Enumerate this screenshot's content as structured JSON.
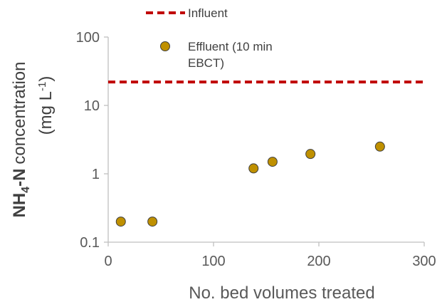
{
  "chart_data": {
    "type": "scatter",
    "xlabel": "No. bed volumes treated",
    "ylabel": {
      "species_main": "NH",
      "species_sub": "4",
      "species_rest": "-N",
      "word": "concentration",
      "unit_open": "(mg L",
      "unit_exp": "-1",
      "unit_close": ")"
    },
    "xlim": [
      0,
      300
    ],
    "ylim": [
      0.1,
      100
    ],
    "y_scale": "log",
    "x_ticks": [
      0,
      100,
      200,
      300
    ],
    "x_tick_labels": [
      "0",
      "100",
      "200",
      "300"
    ],
    "y_ticks": [
      0.1,
      1,
      10,
      100
    ],
    "y_tick_labels": [
      "0.1",
      "1",
      "10",
      "100"
    ],
    "grid": false,
    "legend_position": "top",
    "series": [
      {
        "name": "Influent",
        "kind": "dashed-line",
        "color": "#C00000",
        "y": 22
      },
      {
        "name_line1": "Effluent (10 min",
        "name_line2": "EBCT)",
        "kind": "markers",
        "color": "#BF9000",
        "stroke": "#3F3F3F",
        "points": [
          {
            "x": 12,
            "y": 0.2
          },
          {
            "x": 42,
            "y": 0.2
          },
          {
            "x": 138,
            "y": 1.2
          },
          {
            "x": 156,
            "y": 1.5
          },
          {
            "x": 192,
            "y": 1.95
          },
          {
            "x": 258,
            "y": 2.5
          }
        ]
      }
    ]
  }
}
